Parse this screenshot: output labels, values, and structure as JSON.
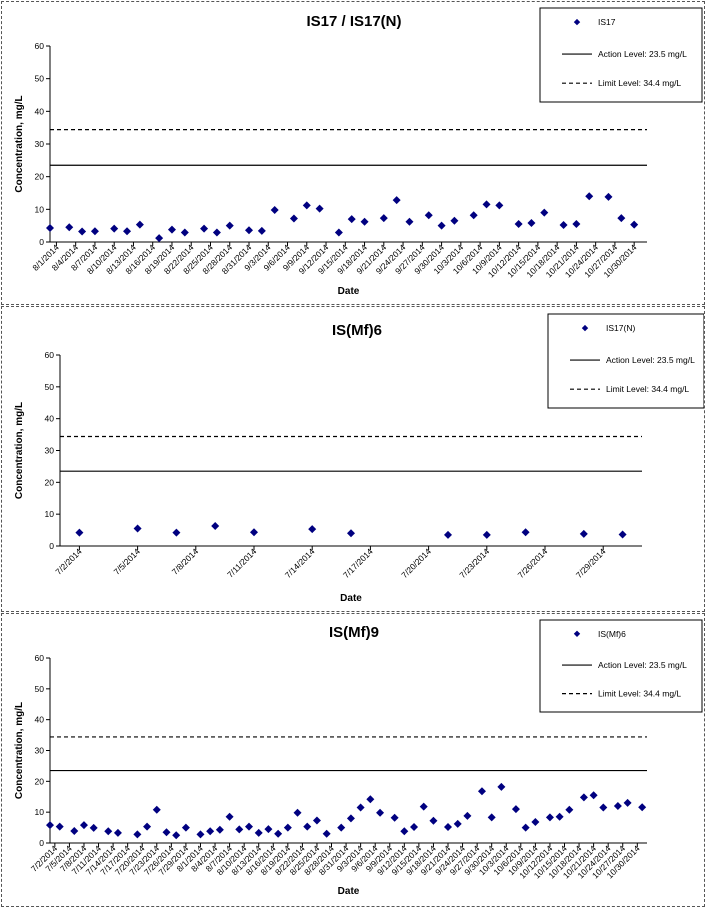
{
  "charts": [
    {
      "chart_data": {
        "type": "scatter",
        "title": "IS17 / IS17(N)",
        "xlabel": "Date",
        "ylabel": "Concentration, mg/L",
        "ylim": [
          0,
          60
        ],
        "yticks": [
          0,
          10,
          20,
          30,
          40,
          50,
          60
        ],
        "xlim": [
          "2014-07-31",
          "2014-11-01"
        ],
        "x_tick_labels": [
          "8/1/2014",
          "8/4/2014",
          "8/7/2014",
          "8/10/2014",
          "8/13/2014",
          "8/16/2014",
          "8/19/2014",
          "8/22/2014",
          "8/25/2014",
          "8/28/2014",
          "8/31/2014",
          "9/3/2014",
          "9/6/2014",
          "9/9/2014",
          "9/12/2014",
          "9/15/2014",
          "9/18/2014",
          "9/21/2014",
          "9/24/2014",
          "9/27/2014",
          "9/30/2014",
          "10/3/2014",
          "10/6/2014",
          "10/9/2014",
          "10/12/2014",
          "10/15/2014",
          "10/18/2014",
          "10/21/2014",
          "10/24/2014",
          "10/27/2014",
          "10/30/2014"
        ],
        "series": [
          {
            "name": "IS17",
            "color": "#000080",
            "marker": "diamond",
            "x": [
              "2014-07-31",
              "2014-08-03",
              "2014-08-05",
              "2014-08-07",
              "2014-08-10",
              "2014-08-12",
              "2014-08-14",
              "2014-08-17",
              "2014-08-19",
              "2014-08-21",
              "2014-08-24",
              "2014-08-26",
              "2014-08-28",
              "2014-08-31",
              "2014-09-02",
              "2014-09-04",
              "2014-09-07",
              "2014-09-09",
              "2014-09-11",
              "2014-09-14",
              "2014-09-16",
              "2014-09-18",
              "2014-09-21",
              "2014-09-23",
              "2014-09-25",
              "2014-09-28",
              "2014-09-30",
              "2014-10-02",
              "2014-10-05",
              "2014-10-07",
              "2014-10-09",
              "2014-10-12",
              "2014-10-14",
              "2014-10-16",
              "2014-10-19",
              "2014-10-21",
              "2014-10-23",
              "2014-10-26",
              "2014-10-28",
              "2014-10-30"
            ],
            "y": [
              4.3,
              4.5,
              3.2,
              3.3,
              4.1,
              3.3,
              5.3,
              1.2,
              3.8,
              2.9,
              4.1,
              2.9,
              5.0,
              3.6,
              3.4,
              9.8,
              7.2,
              11.2,
              10.2,
              2.9,
              7.0,
              6.2,
              7.3,
              12.8,
              6.2,
              8.2,
              5.0,
              6.5,
              8.2,
              11.5,
              11.2,
              5.5,
              5.8,
              9.0,
              5.2,
              5.5,
              14.0,
              13.8,
              7.3,
              5.3
            ]
          }
        ],
        "reference_lines": [
          {
            "name": "Action Level: 23.5 mg/L",
            "y": 23.5,
            "style": "solid"
          },
          {
            "name": "Limit Level: 34.4 mg/L",
            "y": 34.4,
            "style": "dashed"
          }
        ],
        "legend_position": "top-right"
      }
    },
    {
      "chart_data": {
        "type": "scatter",
        "title": "IS(Mf)6",
        "xlabel": "Date",
        "ylabel": "Concentration, mg/L",
        "ylim": [
          0,
          60
        ],
        "yticks": [
          0,
          10,
          20,
          30,
          40,
          50,
          60
        ],
        "xlim": [
          "2014-07-01",
          "2014-07-31"
        ],
        "x_tick_labels": [
          "7/2/2014",
          "7/5/2014",
          "7/8/2014",
          "7/11/2014",
          "7/14/2014",
          "7/17/2014",
          "7/20/2014",
          "7/23/2014",
          "7/26/2014",
          "7/29/2014"
        ],
        "series": [
          {
            "name": "IS17(N)",
            "color": "#000080",
            "marker": "diamond",
            "x": [
              "2014-07-02",
              "2014-07-05",
              "2014-07-07",
              "2014-07-09",
              "2014-07-11",
              "2014-07-14",
              "2014-07-16",
              "2014-07-21",
              "2014-07-23",
              "2014-07-25",
              "2014-07-28",
              "2014-07-30"
            ],
            "y": [
              4.2,
              5.5,
              4.2,
              6.3,
              4.3,
              5.3,
              4.0,
              3.5,
              3.5,
              4.3,
              3.8,
              3.6
            ]
          }
        ],
        "reference_lines": [
          {
            "name": "Action Level: 23.5 mg/L",
            "y": 23.5,
            "style": "solid"
          },
          {
            "name": "Limit Level: 34.4 mg/L",
            "y": 34.4,
            "style": "dashed"
          }
        ],
        "legend_position": "top-right"
      }
    },
    {
      "chart_data": {
        "type": "scatter",
        "title": "IS(Mf)9",
        "xlabel": "Date",
        "ylabel": "Concentration, mg/L",
        "ylim": [
          0,
          60
        ],
        "yticks": [
          0,
          10,
          20,
          30,
          40,
          50,
          60
        ],
        "xlim": [
          "2014-07-01",
          "2014-11-01"
        ],
        "x_tick_labels": [
          "7/2/2014",
          "7/5/2014",
          "7/8/2014",
          "7/11/2014",
          "7/14/2014",
          "7/17/2014",
          "7/20/2014",
          "7/23/2014",
          "7/26/2014",
          "7/29/2014",
          "8/1/2014",
          "8/4/2014",
          "8/7/2014",
          "8/10/2014",
          "8/13/2014",
          "8/16/2014",
          "8/19/2014",
          "8/22/2014",
          "8/25/2014",
          "8/28/2014",
          "8/31/2014",
          "9/3/2014",
          "9/6/2014",
          "9/9/2014",
          "9/12/2014",
          "9/15/2014",
          "9/18/2014",
          "9/21/2014",
          "9/24/2014",
          "9/27/2014",
          "9/30/2014",
          "10/3/2014",
          "10/6/2014",
          "10/9/2014",
          "10/12/2014",
          "10/15/2014",
          "10/18/2014",
          "10/21/2014",
          "10/24/2014",
          "10/27/2014",
          "10/30/2014"
        ],
        "series": [
          {
            "name": "IS(Mf)6",
            "color": "#000080",
            "marker": "diamond",
            "x": [
              "2014-07-01",
              "2014-07-03",
              "2014-07-06",
              "2014-07-08",
              "2014-07-10",
              "2014-07-13",
              "2014-07-15",
              "2014-07-19",
              "2014-07-21",
              "2014-07-23",
              "2014-07-25",
              "2014-07-27",
              "2014-07-29",
              "2014-08-01",
              "2014-08-03",
              "2014-08-05",
              "2014-08-07",
              "2014-08-09",
              "2014-08-11",
              "2014-08-13",
              "2014-08-15",
              "2014-08-17",
              "2014-08-19",
              "2014-08-21",
              "2014-08-23",
              "2014-08-25",
              "2014-08-27",
              "2014-08-30",
              "2014-09-01",
              "2014-09-03",
              "2014-09-05",
              "2014-09-07",
              "2014-09-10",
              "2014-09-12",
              "2014-09-14",
              "2014-09-16",
              "2014-09-18",
              "2014-09-21",
              "2014-09-23",
              "2014-09-25",
              "2014-09-28",
              "2014-09-30",
              "2014-10-02",
              "2014-10-05",
              "2014-10-07",
              "2014-10-09",
              "2014-10-12",
              "2014-10-14",
              "2014-10-16",
              "2014-10-19",
              "2014-10-21",
              "2014-10-23",
              "2014-10-26",
              "2014-10-28",
              "2014-10-31"
            ],
            "y": [
              5.8,
              5.3,
              3.9,
              5.8,
              4.9,
              3.8,
              3.3,
              2.8,
              5.3,
              10.8,
              3.5,
              2.5,
              5.0,
              2.8,
              3.8,
              4.3,
              8.5,
              4.4,
              5.3,
              3.3,
              4.5,
              3.0,
              5.0,
              9.8,
              5.3,
              7.3,
              3.0,
              5.0,
              8.0,
              11.5,
              14.2,
              9.8,
              8.2,
              3.8,
              5.2,
              11.8,
              7.2,
              5.2,
              6.2,
              8.8,
              16.8,
              8.3,
              18.2,
              11.0,
              5.0,
              6.8,
              8.3,
              8.5,
              10.8,
              14.8,
              15.5,
              11.5,
              12.0,
              13.0,
              11.6
            ]
          }
        ],
        "reference_lines": [
          {
            "name": "Action Level: 23.5 mg/L",
            "y": 23.5,
            "style": "solid"
          },
          {
            "name": "Limit Level: 34.4 mg/L",
            "y": 34.4,
            "style": "dashed"
          }
        ],
        "legend_position": "top-right"
      }
    }
  ]
}
